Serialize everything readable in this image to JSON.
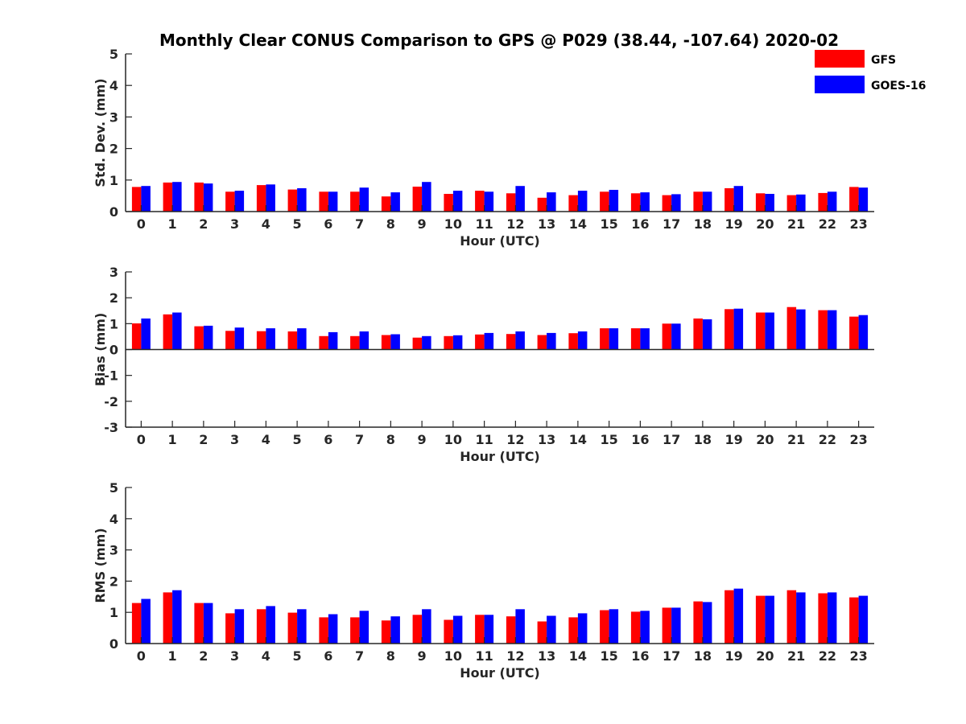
{
  "figure": {
    "title": "Monthly Clear CONUS Comparison to GPS @ P029 (38.44, -107.64) 2020-02"
  },
  "legend": {
    "placement": "top-right",
    "items": [
      {
        "name": "GFS",
        "color": "#ff0000"
      },
      {
        "name": "GOES-16",
        "color": "#0000ff"
      }
    ]
  },
  "chart_data": [
    {
      "type": "bar",
      "xlabel": "Hour (UTC)",
      "ylabel": "Std. Dev. (mm)",
      "ylim": [
        0,
        5
      ],
      "yticks": [
        0,
        1,
        2,
        3,
        4,
        5
      ],
      "categories": [
        "0",
        "1",
        "2",
        "3",
        "4",
        "5",
        "6",
        "7",
        "8",
        "9",
        "10",
        "11",
        "12",
        "13",
        "14",
        "15",
        "16",
        "17",
        "18",
        "19",
        "20",
        "21",
        "22",
        "23"
      ],
      "series": [
        {
          "name": "GFS",
          "color": "#ff0000",
          "values": [
            0.78,
            0.92,
            0.92,
            0.63,
            0.84,
            0.7,
            0.63,
            0.63,
            0.48,
            0.79,
            0.56,
            0.66,
            0.58,
            0.44,
            0.52,
            0.63,
            0.58,
            0.52,
            0.63,
            0.74,
            0.58,
            0.52,
            0.59,
            0.78
          ]
        },
        {
          "name": "GOES-16",
          "color": "#0000ff",
          "values": [
            0.81,
            0.94,
            0.89,
            0.66,
            0.86,
            0.74,
            0.63,
            0.76,
            0.61,
            0.94,
            0.66,
            0.63,
            0.81,
            0.61,
            0.66,
            0.69,
            0.61,
            0.55,
            0.63,
            0.81,
            0.56,
            0.54,
            0.63,
            0.76
          ]
        }
      ]
    },
    {
      "type": "bar",
      "xlabel": "Hour (UTC)",
      "ylabel": "Bias (mm)",
      "ylim": [
        -3,
        3
      ],
      "yticks": [
        -3,
        -2,
        -1,
        0,
        1,
        2,
        3
      ],
      "categories": [
        "0",
        "1",
        "2",
        "3",
        "4",
        "5",
        "6",
        "7",
        "8",
        "9",
        "10",
        "11",
        "12",
        "13",
        "14",
        "15",
        "16",
        "17",
        "18",
        "19",
        "20",
        "21",
        "22",
        "23"
      ],
      "series": [
        {
          "name": "GFS",
          "color": "#ff0000",
          "values": [
            1.01,
            1.36,
            0.9,
            0.72,
            0.71,
            0.7,
            0.52,
            0.52,
            0.56,
            0.46,
            0.52,
            0.58,
            0.6,
            0.56,
            0.63,
            0.82,
            0.82,
            1.0,
            1.2,
            1.56,
            1.43,
            1.64,
            1.52,
            1.27
          ]
        },
        {
          "name": "GOES-16",
          "color": "#0000ff",
          "values": [
            1.2,
            1.43,
            0.92,
            0.85,
            0.82,
            0.82,
            0.67,
            0.7,
            0.59,
            0.52,
            0.55,
            0.64,
            0.7,
            0.64,
            0.7,
            0.82,
            0.82,
            1.0,
            1.17,
            1.58,
            1.43,
            1.55,
            1.52,
            1.33
          ]
        }
      ]
    },
    {
      "type": "bar",
      "xlabel": "Hour (UTC)",
      "ylabel": "RMS (mm)",
      "ylim": [
        0,
        5
      ],
      "yticks": [
        0,
        1,
        2,
        3,
        4,
        5
      ],
      "categories": [
        "0",
        "1",
        "2",
        "3",
        "4",
        "5",
        "6",
        "7",
        "8",
        "9",
        "10",
        "11",
        "12",
        "13",
        "14",
        "15",
        "16",
        "17",
        "18",
        "19",
        "20",
        "21",
        "22",
        "23"
      ],
      "series": [
        {
          "name": "GFS",
          "color": "#ff0000",
          "values": [
            1.3,
            1.64,
            1.3,
            0.97,
            1.1,
            0.99,
            0.84,
            0.84,
            0.74,
            0.92,
            0.76,
            0.92,
            0.87,
            0.71,
            0.84,
            1.07,
            1.02,
            1.15,
            1.35,
            1.71,
            1.53,
            1.71,
            1.61,
            1.48
          ]
        },
        {
          "name": "GOES-16",
          "color": "#0000ff",
          "values": [
            1.43,
            1.71,
            1.3,
            1.1,
            1.2,
            1.1,
            0.94,
            1.05,
            0.87,
            1.1,
            0.89,
            0.92,
            1.1,
            0.89,
            0.97,
            1.1,
            1.05,
            1.15,
            1.33,
            1.76,
            1.53,
            1.64,
            1.64,
            1.53
          ]
        }
      ]
    }
  ]
}
